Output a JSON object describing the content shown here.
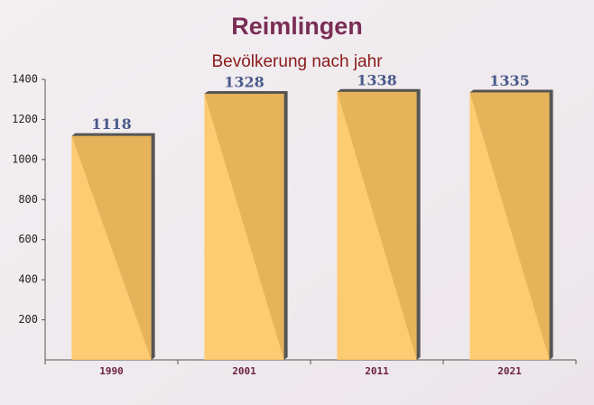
{
  "chart_data": {
    "type": "bar",
    "title": "Reimlingen",
    "subtitle": "Bevölkerung nach jahr",
    "categories": [
      "1990",
      "2001",
      "2011",
      "2021"
    ],
    "values": [
      1118,
      1328,
      1338,
      1335
    ],
    "color": "#ffc55c",
    "ylim": [
      0,
      1400
    ],
    "yticks": [
      200,
      400,
      600,
      800,
      1000,
      1200,
      1400
    ]
  }
}
